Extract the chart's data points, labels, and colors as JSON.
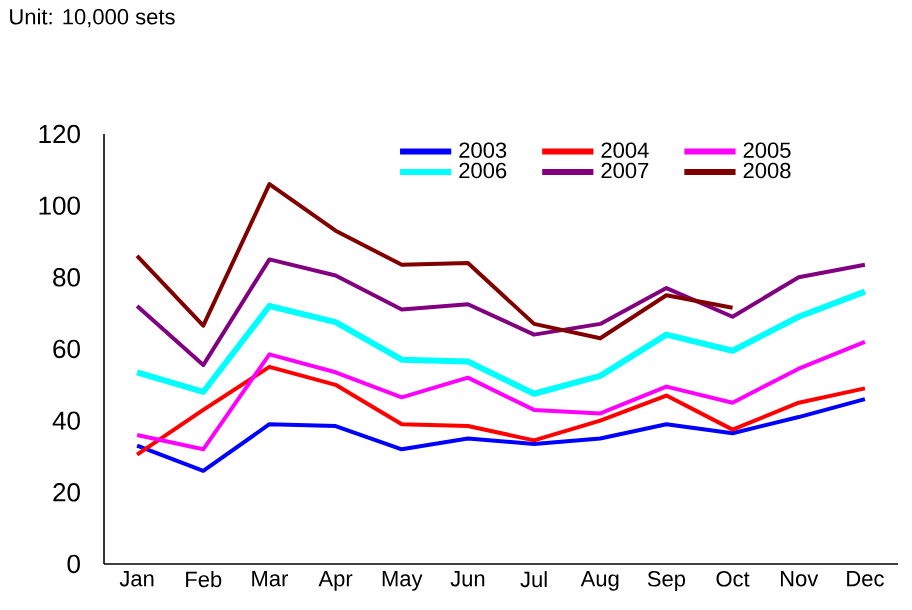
{
  "chart_data": {
    "type": "line",
    "subtitle": "Unit: 10,000 sets",
    "categories": [
      "Jan",
      "Feb",
      "Mar",
      "Apr",
      "May",
      "Jun",
      "Jul",
      "Aug",
      "Sep",
      "Oct",
      "Nov",
      "Dec"
    ],
    "series": [
      {
        "name": "2003",
        "color": "#0000ff",
        "values": [
          33,
          26,
          39,
          38.5,
          32,
          35,
          33.5,
          35,
          39,
          36.5,
          41,
          46
        ]
      },
      {
        "name": "2004",
        "color": "#ff0000",
        "values": [
          30.5,
          43,
          55,
          50,
          39,
          38.5,
          34.5,
          40,
          47,
          37.5,
          45,
          49
        ]
      },
      {
        "name": "2005",
        "color": "#ff00ff",
        "values": [
          36,
          32,
          58.5,
          53.5,
          46.5,
          52,
          43,
          42,
          49.5,
          45,
          54.5,
          62
        ]
      },
      {
        "name": "2006",
        "color": "#00ffff",
        "values": [
          53.5,
          48,
          72,
          67.5,
          57,
          56.5,
          47.5,
          52.5,
          64,
          59.5,
          69,
          76
        ]
      },
      {
        "name": "2007",
        "color": "#800080",
        "values": [
          72,
          55.5,
          85,
          80.5,
          71,
          72.5,
          64,
          67,
          77,
          69,
          80,
          83.5
        ]
      },
      {
        "name": "2008",
        "color": "#800000",
        "values": [
          86,
          66.5,
          106,
          93,
          83.5,
          84,
          67,
          63,
          75,
          71.5,
          null,
          null
        ]
      }
    ],
    "ylim": [
      0,
      120
    ],
    "yticks": [
      0,
      20,
      40,
      60,
      80,
      100,
      120
    ],
    "grid": false,
    "legend": "top",
    "marker": "none",
    "line_style": "solid"
  }
}
